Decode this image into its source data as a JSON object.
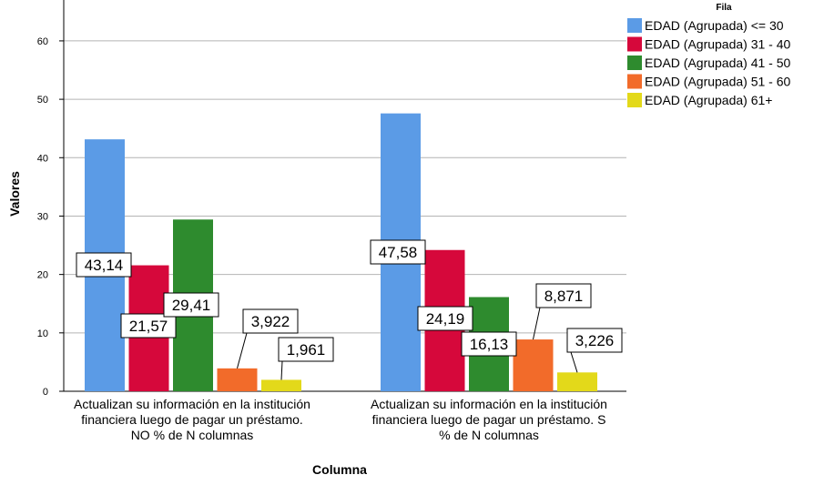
{
  "chart_data": {
    "type": "bar",
    "title": "",
    "xlabel": "Columna",
    "ylabel": "Valores",
    "ylim": [
      0,
      67
    ],
    "yticks": [
      0,
      10,
      20,
      30,
      40,
      50,
      60
    ],
    "grid": true,
    "legend_placement": "top-right",
    "legend_title": "Fila",
    "categories": [
      [
        "Actualizan su información en la institución",
        "financiera luego de pagar un préstamo.",
        "NO % de N columnas"
      ],
      [
        "Actualizan su información en la institución",
        "financiera luego de pagar un préstamo. S",
        "% de N columnas"
      ]
    ],
    "series": [
      {
        "name": "EDAD (Agrupada) <= 30",
        "color": "#5b9be6",
        "values": [
          43.14,
          47.58
        ],
        "labels": [
          "43,14",
          "47,58"
        ]
      },
      {
        "name": "EDAD (Agrupada) 31 - 40",
        "color": "#d6083b",
        "values": [
          21.57,
          24.19
        ],
        "labels": [
          "21,57",
          "24,19"
        ]
      },
      {
        "name": "EDAD (Agrupada) 41 - 50",
        "color": "#2e8b2e",
        "values": [
          29.41,
          16.13
        ],
        "labels": [
          "29,41",
          "16,13"
        ]
      },
      {
        "name": "EDAD (Agrupada) 51 - 60",
        "color": "#f26b2a",
        "values": [
          3.922,
          8.871
        ],
        "labels": [
          "3,922",
          "8,871"
        ]
      },
      {
        "name": "EDAD (Agrupada) 61+",
        "color": "#e3d91a",
        "values": [
          1.961,
          3.226
        ],
        "labels": [
          "1,961",
          "3,226"
        ]
      }
    ]
  }
}
